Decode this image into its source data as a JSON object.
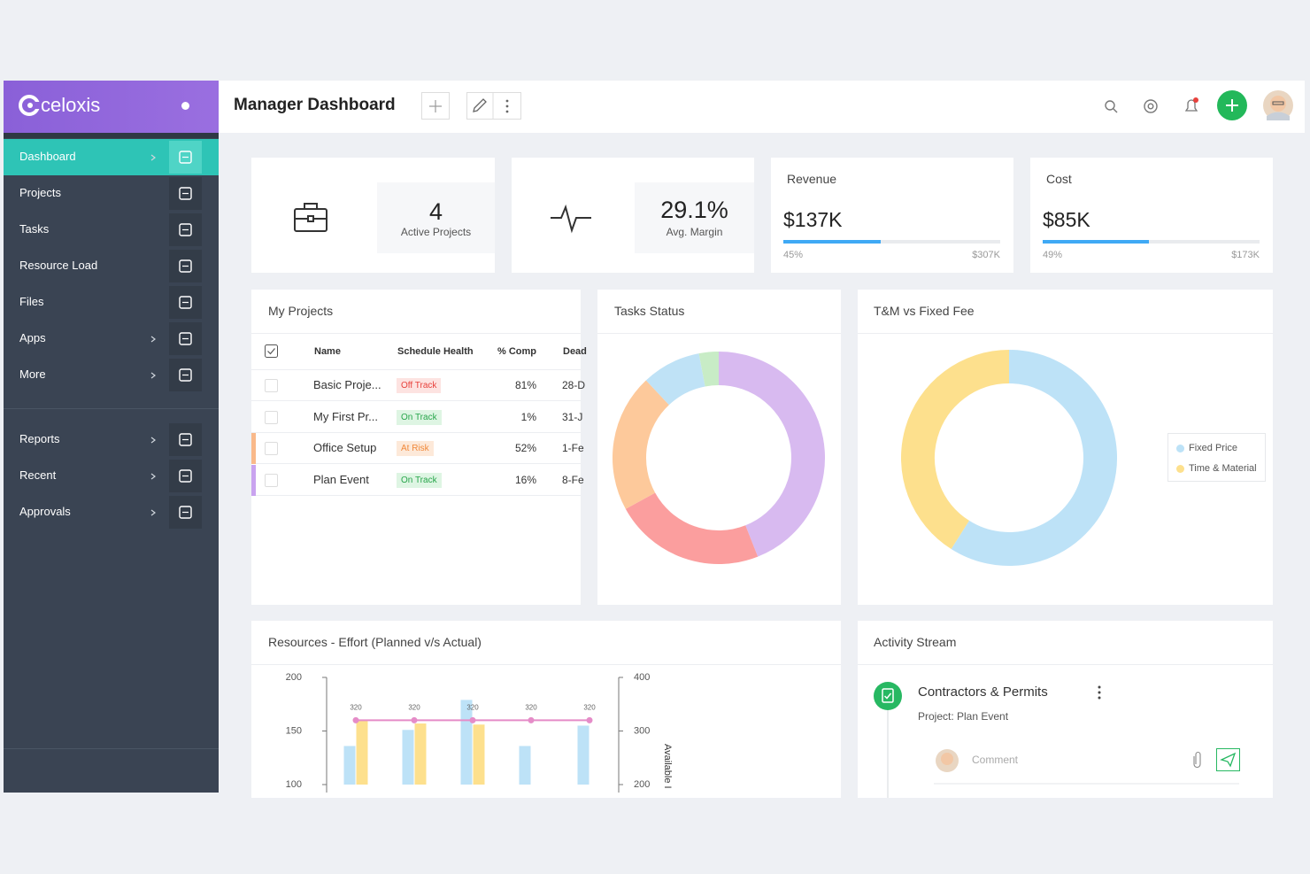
{
  "brand": "celoxis",
  "sidebar": {
    "items": [
      "Dashboard",
      "Projects",
      "Tasks",
      "Resource Load",
      "Files",
      "Apps",
      "More",
      "Reports",
      "Recent",
      "Approvals"
    ]
  },
  "header": {
    "title": "Manager Dashboard"
  },
  "kpis": [
    {
      "value": 4,
      "label": "Active Projects"
    },
    {
      "value": "29.1%",
      "label": "Avg. Margin"
    }
  ],
  "finance": [
    {
      "title": "Revenue",
      "amount": "$137K",
      "progress": {
        "value": 45,
        "label": "45%"
      },
      "total": "$307K"
    },
    {
      "title": "Cost",
      "amount": "$85K",
      "progress": {
        "value": 49,
        "label": "49%"
      },
      "total": "$173K"
    }
  ],
  "my_projects": {
    "title": "My Projects",
    "columns": [
      "Name",
      "Schedule Health",
      "% Comp",
      "Dead"
    ],
    "rows": [
      {
        "name": "Basic Proje...",
        "health": "Off Track",
        "health_color": "#e8413c",
        "health_bg": "#fde3e1",
        "comp": "81%",
        "deadline": "28-D"
      },
      {
        "name": "My First Pr...",
        "health": "On Track",
        "health_color": "#27a54a",
        "health_bg": "#def5e3",
        "comp": "1%",
        "deadline": "31-J"
      },
      {
        "name": "Office Setup",
        "health": "At Risk",
        "health_color": "#f0883a",
        "health_bg": "#fde9d9",
        "comp": "52%",
        "deadline": "1-Fe",
        "accent": "#f9b98a"
      },
      {
        "name": "Plan Event",
        "health": "On Track",
        "health_color": "#27a54a",
        "health_bg": "#def5e3",
        "comp": "16%",
        "deadline": "8-Fe",
        "accent": "#c9a3ef"
      }
    ]
  },
  "chart_data": [
    {
      "type": "donut",
      "title": "Tasks Status",
      "values": [
        44,
        23,
        21,
        9,
        3
      ],
      "colors": [
        "#d8baf0",
        "#fb9e9e",
        "#fdc99b",
        "#bfe2f6",
        "#c8ecc6"
      ]
    },
    {
      "type": "donut",
      "title": "T&M vs Fixed Fee",
      "categories": [
        "Fixed Price",
        "Time & Material"
      ],
      "values": [
        59,
        41
      ],
      "colors": [
        "#bde2f7",
        "#fde08d"
      ],
      "legend": "right"
    },
    {
      "type": "bar",
      "title": "Resources - Effort (Planned v/s Actual)",
      "series": [
        {
          "type": "bar",
          "color": "#bde2f7",
          "values": [
            136,
            151,
            179,
            136,
            155
          ]
        },
        {
          "type": "bar",
          "color": "#fde08d",
          "values": [
            160,
            157,
            156,
            null,
            null
          ]
        },
        {
          "type": "line",
          "axis": "y2",
          "color": "#e58cc8",
          "values": [
            320,
            320,
            320,
            320,
            320
          ]
        }
      ],
      "ylim": [
        100,
        200
      ],
      "yticks": [
        100,
        150,
        200
      ],
      "y2lim": [
        200,
        400
      ],
      "y2ticks": [
        200,
        300,
        400
      ],
      "y2label": "Available I"
    }
  ],
  "activity": {
    "title": "Activity Stream",
    "items": [
      {
        "title": "Contractors & Permits",
        "project": "Project: Plan Event",
        "comment_placeholder": "Comment"
      }
    ]
  }
}
